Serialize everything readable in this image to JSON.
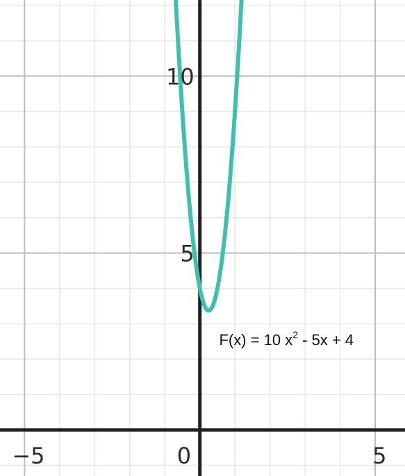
{
  "chart_data": {
    "type": "line",
    "title": "",
    "xlabel": "",
    "ylabel": "",
    "xlim": [
      -5.7,
      5.85
    ],
    "ylim": [
      -1.3,
      12.15
    ],
    "grid": true,
    "minor_grid_step": 1,
    "major_grid_step": 5,
    "series": [
      {
        "function": {
          "a": 10,
          "b": -5,
          "c": 4
        },
        "x_range": [
          -0.7,
          1.25
        ],
        "color": "#40bfb0",
        "points": [
          {
            "x": -0.6,
            "y": 10.6
          },
          {
            "x": -0.4,
            "y": 7.6
          },
          {
            "x": -0.2,
            "y": 5.4
          },
          {
            "x": 0,
            "y": 4
          },
          {
            "x": 0.25,
            "y": 3.375
          },
          {
            "x": 0.5,
            "y": 4
          },
          {
            "x": 0.75,
            "y": 5.875
          },
          {
            "x": 1,
            "y": 9
          },
          {
            "x": 1.2,
            "y": 12.4
          }
        ]
      }
    ],
    "x_ticks": [
      {
        "value": -5,
        "label": "−5"
      },
      {
        "value": 0,
        "label": "0"
      },
      {
        "value": 5,
        "label": "5"
      }
    ],
    "y_ticks": [
      {
        "value": 5,
        "label": "5"
      },
      {
        "value": 10,
        "label": "10"
      }
    ],
    "annotation": {
      "x": 0.55,
      "y": 2.4,
      "prefix": "F(x)  =  10 x",
      "superscript": "2",
      "suffix": " - 5x + 4"
    }
  }
}
